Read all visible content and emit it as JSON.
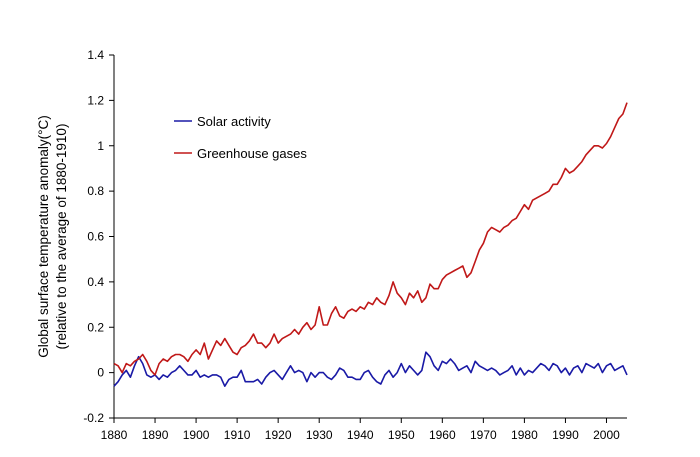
{
  "chart_data": {
    "type": "line",
    "title": "",
    "xlabel": "",
    "ylabel": [
      "Global surface temperature anomaly(°C)",
      "(relative to the average of 1880-1910)"
    ],
    "xlim": [
      1880,
      2005
    ],
    "ylim": [
      -0.2,
      1.4
    ],
    "x_ticks": [
      "1880",
      "1890",
      "1900",
      "1910",
      "1920",
      "1930",
      "1940",
      "1950",
      "1960",
      "1970",
      "1980",
      "1990",
      "2000"
    ],
    "y_ticks": [
      "-0.2",
      "0",
      "0.2",
      "0.4",
      "0.6",
      "0.8",
      "1",
      "1.2",
      "1.4"
    ],
    "grid": false,
    "legend_position": "upper-left inside",
    "series": [
      {
        "name": "Solar activity",
        "color": "#1a1aa6",
        "points": [
          [
            1880,
            -0.06
          ],
          [
            1881,
            -0.04
          ],
          [
            1882,
            -0.01
          ],
          [
            1883,
            0.01
          ],
          [
            1884,
            -0.02
          ],
          [
            1885,
            0.03
          ],
          [
            1886,
            0.07
          ],
          [
            1887,
            0.04
          ],
          [
            1888,
            -0.01
          ],
          [
            1889,
            -0.02
          ],
          [
            1890,
            -0.01
          ],
          [
            1891,
            -0.03
          ],
          [
            1892,
            -0.01
          ],
          [
            1893,
            -0.02
          ],
          [
            1894,
            0.0
          ],
          [
            1895,
            0.01
          ],
          [
            1896,
            0.03
          ],
          [
            1897,
            0.01
          ],
          [
            1898,
            -0.01
          ],
          [
            1899,
            -0.01
          ],
          [
            1900,
            0.01
          ],
          [
            1901,
            -0.02
          ],
          [
            1902,
            -0.01
          ],
          [
            1903,
            -0.02
          ],
          [
            1904,
            -0.01
          ],
          [
            1905,
            -0.01
          ],
          [
            1906,
            -0.02
          ],
          [
            1907,
            -0.06
          ],
          [
            1908,
            -0.03
          ],
          [
            1909,
            -0.02
          ],
          [
            1910,
            -0.02
          ],
          [
            1911,
            0.01
          ],
          [
            1912,
            -0.04
          ],
          [
            1913,
            -0.04
          ],
          [
            1914,
            -0.04
          ],
          [
            1915,
            -0.03
          ],
          [
            1916,
            -0.05
          ],
          [
            1917,
            -0.02
          ],
          [
            1918,
            0.0
          ],
          [
            1919,
            0.01
          ],
          [
            1920,
            -0.01
          ],
          [
            1921,
            -0.03
          ],
          [
            1922,
            0.0
          ],
          [
            1923,
            0.03
          ],
          [
            1924,
            0.0
          ],
          [
            1925,
            0.01
          ],
          [
            1926,
            0.0
          ],
          [
            1927,
            -0.04
          ],
          [
            1928,
            0.0
          ],
          [
            1929,
            -0.02
          ],
          [
            1930,
            0.0
          ],
          [
            1931,
            0.0
          ],
          [
            1932,
            -0.02
          ],
          [
            1933,
            -0.03
          ],
          [
            1934,
            -0.01
          ],
          [
            1935,
            0.02
          ],
          [
            1936,
            0.01
          ],
          [
            1937,
            -0.02
          ],
          [
            1938,
            -0.02
          ],
          [
            1939,
            -0.03
          ],
          [
            1940,
            -0.03
          ],
          [
            1941,
            0.0
          ],
          [
            1942,
            0.01
          ],
          [
            1943,
            -0.02
          ],
          [
            1944,
            -0.04
          ],
          [
            1945,
            -0.05
          ],
          [
            1946,
            -0.01
          ],
          [
            1947,
            0.01
          ],
          [
            1948,
            -0.02
          ],
          [
            1949,
            0.0
          ],
          [
            1950,
            0.04
          ],
          [
            1951,
            0.0
          ],
          [
            1952,
            0.03
          ],
          [
            1953,
            0.01
          ],
          [
            1954,
            -0.01
          ],
          [
            1955,
            0.01
          ],
          [
            1956,
            0.09
          ],
          [
            1957,
            0.07
          ],
          [
            1958,
            0.03
          ],
          [
            1959,
            0.01
          ],
          [
            1960,
            0.05
          ],
          [
            1961,
            0.04
          ],
          [
            1962,
            0.06
          ],
          [
            1963,
            0.04
          ],
          [
            1964,
            0.01
          ],
          [
            1965,
            0.02
          ],
          [
            1966,
            0.03
          ],
          [
            1967,
            0.0
          ],
          [
            1968,
            0.05
          ],
          [
            1969,
            0.03
          ],
          [
            1970,
            0.02
          ],
          [
            1971,
            0.01
          ],
          [
            1972,
            0.02
          ],
          [
            1973,
            0.01
          ],
          [
            1974,
            -0.01
          ],
          [
            1975,
            0.0
          ],
          [
            1976,
            0.01
          ],
          [
            1977,
            0.03
          ],
          [
            1978,
            -0.01
          ],
          [
            1979,
            0.02
          ],
          [
            1980,
            -0.01
          ],
          [
            1981,
            0.01
          ],
          [
            1982,
            0.0
          ],
          [
            1983,
            0.02
          ],
          [
            1984,
            0.04
          ],
          [
            1985,
            0.03
          ],
          [
            1986,
            0.01
          ],
          [
            1987,
            0.04
          ],
          [
            1988,
            0.03
          ],
          [
            1989,
            0.0
          ],
          [
            1990,
            0.02
          ],
          [
            1991,
            -0.01
          ],
          [
            1992,
            0.02
          ],
          [
            1993,
            0.03
          ],
          [
            1994,
            0.0
          ],
          [
            1995,
            0.04
          ],
          [
            1996,
            0.03
          ],
          [
            1997,
            0.02
          ],
          [
            1998,
            0.04
          ],
          [
            1999,
            0.0
          ],
          [
            2000,
            0.03
          ],
          [
            2001,
            0.04
          ],
          [
            2002,
            0.01
          ],
          [
            2003,
            0.02
          ],
          [
            2004,
            0.03
          ],
          [
            2005,
            -0.01
          ]
        ]
      },
      {
        "name": "Greenhouse gases",
        "color": "#c01818",
        "points": [
          [
            1880,
            0.04
          ],
          [
            1881,
            0.03
          ],
          [
            1882,
            0.0
          ],
          [
            1883,
            0.04
          ],
          [
            1884,
            0.03
          ],
          [
            1885,
            0.05
          ],
          [
            1886,
            0.06
          ],
          [
            1887,
            0.08
          ],
          [
            1888,
            0.05
          ],
          [
            1889,
            0.01
          ],
          [
            1890,
            -0.01
          ],
          [
            1891,
            0.04
          ],
          [
            1892,
            0.06
          ],
          [
            1893,
            0.05
          ],
          [
            1894,
            0.07
          ],
          [
            1895,
            0.08
          ],
          [
            1896,
            0.08
          ],
          [
            1897,
            0.07
          ],
          [
            1898,
            0.05
          ],
          [
            1899,
            0.08
          ],
          [
            1900,
            0.1
          ],
          [
            1901,
            0.08
          ],
          [
            1902,
            0.13
          ],
          [
            1903,
            0.06
          ],
          [
            1904,
            0.1
          ],
          [
            1905,
            0.14
          ],
          [
            1906,
            0.12
          ],
          [
            1907,
            0.15
          ],
          [
            1908,
            0.12
          ],
          [
            1909,
            0.09
          ],
          [
            1910,
            0.08
          ],
          [
            1911,
            0.11
          ],
          [
            1912,
            0.12
          ],
          [
            1913,
            0.14
          ],
          [
            1914,
            0.17
          ],
          [
            1915,
            0.13
          ],
          [
            1916,
            0.13
          ],
          [
            1917,
            0.11
          ],
          [
            1918,
            0.13
          ],
          [
            1919,
            0.17
          ],
          [
            1920,
            0.13
          ],
          [
            1921,
            0.15
          ],
          [
            1922,
            0.16
          ],
          [
            1923,
            0.17
          ],
          [
            1924,
            0.19
          ],
          [
            1925,
            0.17
          ],
          [
            1926,
            0.2
          ],
          [
            1927,
            0.22
          ],
          [
            1928,
            0.19
          ],
          [
            1929,
            0.21
          ],
          [
            1930,
            0.29
          ],
          [
            1931,
            0.21
          ],
          [
            1932,
            0.21
          ],
          [
            1933,
            0.26
          ],
          [
            1934,
            0.29
          ],
          [
            1935,
            0.25
          ],
          [
            1936,
            0.24
          ],
          [
            1937,
            0.27
          ],
          [
            1938,
            0.28
          ],
          [
            1939,
            0.27
          ],
          [
            1940,
            0.29
          ],
          [
            1941,
            0.28
          ],
          [
            1942,
            0.31
          ],
          [
            1943,
            0.3
          ],
          [
            1944,
            0.33
          ],
          [
            1945,
            0.31
          ],
          [
            1946,
            0.3
          ],
          [
            1947,
            0.34
          ],
          [
            1948,
            0.4
          ],
          [
            1949,
            0.35
          ],
          [
            1950,
            0.33
          ],
          [
            1951,
            0.3
          ],
          [
            1952,
            0.35
          ],
          [
            1953,
            0.33
          ],
          [
            1954,
            0.36
          ],
          [
            1955,
            0.31
          ],
          [
            1956,
            0.33
          ],
          [
            1957,
            0.39
          ],
          [
            1958,
            0.37
          ],
          [
            1959,
            0.37
          ],
          [
            1960,
            0.41
          ],
          [
            1961,
            0.43
          ],
          [
            1962,
            0.44
          ],
          [
            1963,
            0.45
          ],
          [
            1964,
            0.46
          ],
          [
            1965,
            0.47
          ],
          [
            1966,
            0.42
          ],
          [
            1967,
            0.44
          ],
          [
            1968,
            0.49
          ],
          [
            1969,
            0.54
          ],
          [
            1970,
            0.57
          ],
          [
            1971,
            0.62
          ],
          [
            1972,
            0.64
          ],
          [
            1973,
            0.63
          ],
          [
            1974,
            0.62
          ],
          [
            1975,
            0.64
          ],
          [
            1976,
            0.65
          ],
          [
            1977,
            0.67
          ],
          [
            1978,
            0.68
          ],
          [
            1979,
            0.71
          ],
          [
            1980,
            0.74
          ],
          [
            1981,
            0.72
          ],
          [
            1982,
            0.76
          ],
          [
            1983,
            0.77
          ],
          [
            1984,
            0.78
          ],
          [
            1985,
            0.79
          ],
          [
            1986,
            0.8
          ],
          [
            1987,
            0.83
          ],
          [
            1988,
            0.83
          ],
          [
            1989,
            0.86
          ],
          [
            1990,
            0.9
          ],
          [
            1991,
            0.88
          ],
          [
            1992,
            0.89
          ],
          [
            1993,
            0.91
          ],
          [
            1994,
            0.93
          ],
          [
            1995,
            0.96
          ],
          [
            1996,
            0.98
          ],
          [
            1997,
            1.0
          ],
          [
            1998,
            1.0
          ],
          [
            1999,
            0.99
          ],
          [
            2000,
            1.01
          ],
          [
            2001,
            1.04
          ],
          [
            2002,
            1.08
          ],
          [
            2003,
            1.12
          ],
          [
            2004,
            1.14
          ],
          [
            2005,
            1.19
          ]
        ]
      }
    ]
  }
}
